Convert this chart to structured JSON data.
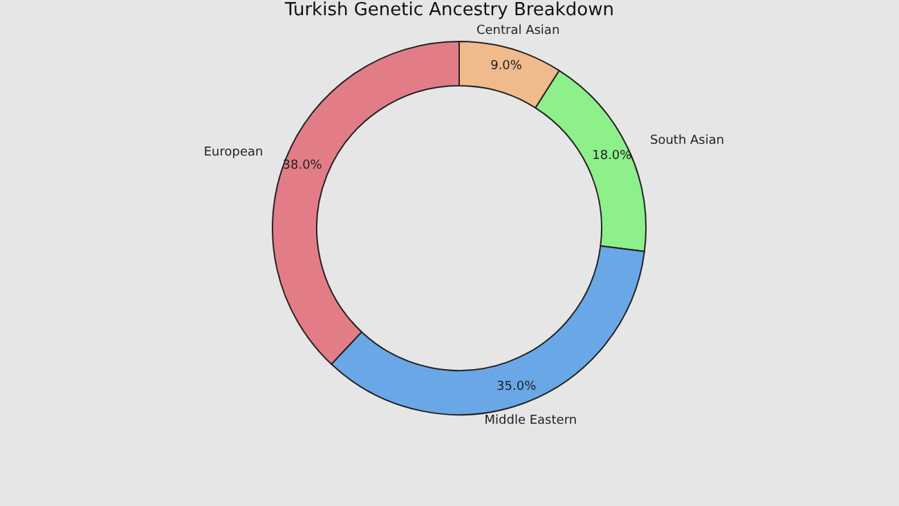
{
  "chart_data": {
    "type": "donut",
    "title": "Turkish Genetic Ancestry Breakdown",
    "categories": [
      "Central Asian",
      "South Asian",
      "Middle Eastern",
      "European"
    ],
    "values": [
      9.0,
      18.0,
      35.0,
      38.0
    ],
    "value_labels": [
      "9.0%",
      "18.0%",
      "35.0%",
      "38.0%"
    ],
    "colors": [
      "#efbb8c",
      "#8ef08a",
      "#6aa7e6",
      "#e27d88"
    ],
    "legend": false
  }
}
